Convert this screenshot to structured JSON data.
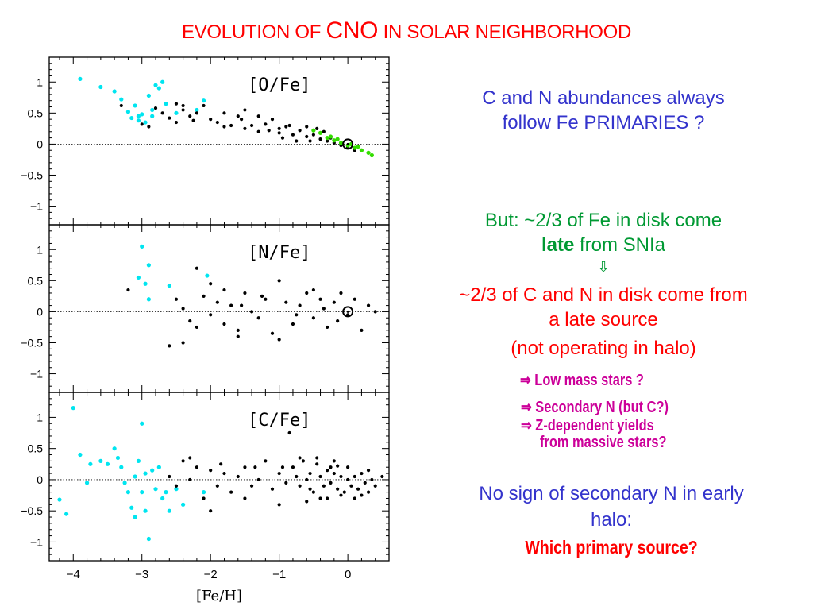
{
  "slide": {
    "title_prefix": "EVOLUTION OF ",
    "title_big": "CNO",
    "title_suffix": " IN SOLAR NEIGHBORHOOD"
  },
  "notes": {
    "primaries": "C and N abundances always follow Fe PRIMARIES ?",
    "late_prefix": "But: ~2/3 of Fe in disk come ",
    "late_word": "late",
    "late_suffix": " from SNIa",
    "arrow": "⇩",
    "late_source": "~2/3 of C and N in disk come from a late source",
    "halo": "(not operating in halo)",
    "hyp_lowmass": "⇒ Low mass stars ?",
    "hyp_secondary": "⇒ Secondary N (but C?)",
    "hyp_zdep": "⇒ Z-dependent yields",
    "hyp_massive": "from massive stars?",
    "no_sign": "No sign of secondary N in early halo:",
    "which": "Which primary source?"
  },
  "colors": {
    "title": "#ff0000",
    "blue_text": "#3333cc",
    "green_text": "#009933",
    "magenta_text": "#cc0099",
    "halo_points": "#00e5f0",
    "disk_points": "#000000",
    "green_points": "#33dd00"
  },
  "chart_data": [
    {
      "type": "scatter",
      "title": "[O/Fe]",
      "xlabel": "[Fe/H]",
      "ylabel": "",
      "xlim": [
        -4.35,
        0.6
      ],
      "ylim": [
        -1.3,
        1.4
      ],
      "xticks": [
        "-4",
        "-3",
        "-2",
        "-1",
        "0"
      ],
      "yticks": [
        "1",
        "0.5",
        "0",
        "-0.5",
        "-1"
      ],
      "reference_line": 0,
      "sun_marker": [
        0,
        0
      ],
      "series": [
        {
          "color": "cyan",
          "points": [
            [
              -3.9,
              1.05
            ],
            [
              -3.6,
              0.92
            ],
            [
              -3.4,
              0.85
            ],
            [
              -3.3,
              0.72
            ],
            [
              -3.2,
              0.52
            ],
            [
              -3.1,
              0.62
            ],
            [
              -3.05,
              0.45
            ],
            [
              -3.0,
              0.48
            ],
            [
              -2.95,
              0.35
            ],
            [
              -2.9,
              0.78
            ],
            [
              -2.85,
              0.55
            ],
            [
              -2.8,
              0.95
            ],
            [
              -2.75,
              0.9
            ],
            [
              -2.7,
              1.0
            ],
            [
              -2.65,
              0.65
            ],
            [
              -3.15,
              0.42
            ],
            [
              -3.05,
              0.38
            ],
            [
              -2.5,
              0.5
            ],
            [
              -2.1,
              0.7
            ],
            [
              -2.2,
              0.55
            ],
            [
              -2.85,
              0.45
            ]
          ]
        },
        {
          "color": "black",
          "points": [
            [
              -3.3,
              0.62
            ],
            [
              -3.0,
              0.32
            ],
            [
              -2.8,
              0.58
            ],
            [
              -2.7,
              0.5
            ],
            [
              -2.6,
              0.42
            ],
            [
              -2.5,
              0.65
            ],
            [
              -2.4,
              0.55
            ],
            [
              -2.3,
              0.45
            ],
            [
              -2.2,
              0.5
            ],
            [
              -2.1,
              0.62
            ],
            [
              -2.0,
              0.4
            ],
            [
              -1.9,
              0.35
            ],
            [
              -1.8,
              0.5
            ],
            [
              -1.7,
              0.3
            ],
            [
              -1.6,
              0.45
            ],
            [
              -1.5,
              0.55
            ],
            [
              -1.4,
              0.3
            ],
            [
              -1.3,
              0.45
            ],
            [
              -1.2,
              0.32
            ],
            [
              -1.1,
              0.4
            ],
            [
              -1.0,
              0.25
            ],
            [
              -0.9,
              0.28
            ],
            [
              -0.8,
              0.15
            ],
            [
              -0.7,
              0.22
            ],
            [
              -0.6,
              0.12
            ],
            [
              -0.5,
              0.15
            ],
            [
              -0.4,
              0.08
            ],
            [
              -0.3,
              0.05
            ],
            [
              -0.2,
              0.02
            ],
            [
              -0.1,
              -0.02
            ],
            [
              0.0,
              -0.05
            ],
            [
              0.1,
              -0.1
            ],
            [
              -1.5,
              0.25
            ],
            [
              -2.5,
              0.35
            ],
            [
              -1.8,
              0.28
            ],
            [
              -1.0,
              0.18
            ],
            [
              -0.6,
              0.28
            ],
            [
              -2.4,
              0.62
            ],
            [
              -2.9,
              0.28
            ],
            [
              -1.3,
              0.2
            ],
            [
              -0.95,
              0.1
            ],
            [
              -0.35,
              0.2
            ],
            [
              -0.75,
              0.05
            ],
            [
              -2.25,
              0.38
            ],
            [
              -1.55,
              0.4
            ],
            [
              -1.15,
              0.22
            ],
            [
              -0.55,
              0.05
            ],
            [
              -0.85,
              0.3
            ],
            [
              -0.45,
              0.25
            ],
            [
              -0.25,
              0.1
            ]
          ]
        },
        {
          "color": "green",
          "points": [
            [
              -0.5,
              0.22
            ],
            [
              -0.4,
              0.18
            ],
            [
              -0.3,
              0.1
            ],
            [
              -0.2,
              0.06
            ],
            [
              -0.1,
              0.02
            ],
            [
              0.0,
              -0.02
            ],
            [
              0.1,
              -0.06
            ],
            [
              0.2,
              -0.1
            ],
            [
              0.3,
              -0.14
            ],
            [
              0.35,
              -0.18
            ],
            [
              -0.15,
              0.08
            ],
            [
              0.05,
              0.0
            ],
            [
              0.15,
              -0.04
            ],
            [
              -0.25,
              0.12
            ]
          ]
        }
      ]
    },
    {
      "type": "scatter",
      "title": "[N/Fe]",
      "xlabel": "[Fe/H]",
      "ylabel": "",
      "xlim": [
        -4.35,
        0.6
      ],
      "ylim": [
        -1.3,
        1.4
      ],
      "xticks": [
        "-4",
        "-3",
        "-2",
        "-1",
        "0"
      ],
      "yticks": [
        "1",
        "0.5",
        "0",
        "-0.5",
        "-1"
      ],
      "reference_line": 0,
      "sun_marker": [
        0,
        0
      ],
      "series": [
        {
          "color": "cyan",
          "points": [
            [
              -3.0,
              1.05
            ],
            [
              -2.9,
              0.75
            ],
            [
              -3.05,
              0.55
            ],
            [
              -2.95,
              0.45
            ],
            [
              -2.9,
              0.2
            ],
            [
              -2.6,
              0.42
            ],
            [
              -2.05,
              0.58
            ]
          ]
        },
        {
          "color": "black",
          "points": [
            [
              -3.2,
              0.35
            ],
            [
              -2.5,
              0.2
            ],
            [
              -2.4,
              0.05
            ],
            [
              -2.3,
              -0.15
            ],
            [
              -2.2,
              0.7
            ],
            [
              -2.1,
              0.25
            ],
            [
              -2.0,
              -0.05
            ],
            [
              -1.9,
              0.15
            ],
            [
              -1.8,
              -0.2
            ],
            [
              -1.7,
              0.1
            ],
            [
              -1.6,
              -0.3
            ],
            [
              -1.5,
              0.3
            ],
            [
              -1.4,
              0.0
            ],
            [
              -1.3,
              -0.1
            ],
            [
              -1.2,
              0.2
            ],
            [
              -1.1,
              -0.35
            ],
            [
              -1.0,
              0.5
            ],
            [
              -0.9,
              0.15
            ],
            [
              -0.8,
              -0.2
            ],
            [
              -0.7,
              0.1
            ],
            [
              -0.6,
              0.3
            ],
            [
              -0.5,
              -0.1
            ],
            [
              -0.4,
              0.2
            ],
            [
              -0.3,
              -0.25
            ],
            [
              -0.2,
              0.15
            ],
            [
              -0.1,
              0.3
            ],
            [
              0.0,
              -0.05
            ],
            [
              0.1,
              0.2
            ],
            [
              0.2,
              -0.3
            ],
            [
              0.3,
              0.1
            ],
            [
              -2.6,
              -0.55
            ],
            [
              -2.4,
              -0.5
            ],
            [
              -1.6,
              -0.4
            ],
            [
              -1.0,
              -0.45
            ],
            [
              -0.5,
              0.35
            ],
            [
              0.4,
              0.0
            ],
            [
              -1.8,
              0.35
            ],
            [
              -2.0,
              0.45
            ],
            [
              -0.15,
              -0.15
            ],
            [
              -0.35,
              0.05
            ],
            [
              -0.75,
              -0.05
            ],
            [
              -1.25,
              0.25
            ],
            [
              -1.55,
              0.1
            ],
            [
              -2.2,
              -0.25
            ]
          ]
        }
      ]
    },
    {
      "type": "scatter",
      "title": "[C/Fe]",
      "xlabel": "[Fe/H]",
      "ylabel": "",
      "xlim": [
        -4.35,
        0.6
      ],
      "ylim": [
        -1.3,
        1.4
      ],
      "xticks": [
        "-4",
        "-3",
        "-2",
        "-1",
        "0"
      ],
      "yticks": [
        "1",
        "0.5",
        "0",
        "-0.5",
        "-1"
      ],
      "reference_line": 0,
      "sun_marker": null,
      "series": [
        {
          "color": "cyan",
          "points": [
            [
              -4.2,
              -0.32
            ],
            [
              -4.1,
              -0.55
            ],
            [
              -4.0,
              1.15
            ],
            [
              -3.9,
              0.4
            ],
            [
              -3.8,
              -0.05
            ],
            [
              -3.75,
              0.25
            ],
            [
              -3.6,
              0.3
            ],
            [
              -3.5,
              0.25
            ],
            [
              -3.4,
              0.5
            ],
            [
              -3.35,
              0.35
            ],
            [
              -3.3,
              0.2
            ],
            [
              -3.25,
              -0.05
            ],
            [
              -3.2,
              -0.2
            ],
            [
              -3.15,
              -0.45
            ],
            [
              -3.1,
              -0.6
            ],
            [
              -3.05,
              0.3
            ],
            [
              -3.0,
              0.9
            ],
            [
              -3.0,
              -0.2
            ],
            [
              -2.95,
              -0.5
            ],
            [
              -2.9,
              -0.95
            ],
            [
              -2.85,
              0.15
            ],
            [
              -2.8,
              -0.15
            ],
            [
              -2.75,
              0.2
            ],
            [
              -2.7,
              -0.3
            ],
            [
              -2.65,
              -0.2
            ],
            [
              -2.6,
              -0.5
            ],
            [
              -2.5,
              -0.15
            ],
            [
              -2.4,
              -0.4
            ],
            [
              -2.1,
              -0.2
            ],
            [
              -3.1,
              0.05
            ],
            [
              -2.95,
              0.1
            ]
          ]
        },
        {
          "color": "black",
          "points": [
            [
              -2.6,
              0.05
            ],
            [
              -2.5,
              -0.1
            ],
            [
              -2.4,
              0.3
            ],
            [
              -2.3,
              0.0
            ],
            [
              -2.2,
              0.2
            ],
            [
              -2.1,
              -0.3
            ],
            [
              -2.0,
              0.15
            ],
            [
              -1.9,
              -0.1
            ],
            [
              -1.8,
              0.1
            ],
            [
              -1.7,
              -0.2
            ],
            [
              -1.6,
              0.05
            ],
            [
              -1.5,
              0.2
            ],
            [
              -1.4,
              -0.1
            ],
            [
              -1.3,
              0.0
            ],
            [
              -1.2,
              0.3
            ],
            [
              -1.1,
              -0.15
            ],
            [
              -1.0,
              0.1
            ],
            [
              -0.9,
              -0.05
            ],
            [
              -0.85,
              0.75
            ],
            [
              -0.8,
              0.2
            ],
            [
              -0.75,
              0.05
            ],
            [
              -0.7,
              -0.1
            ],
            [
              -0.65,
              0.3
            ],
            [
              -0.6,
              0.0
            ],
            [
              -0.55,
              0.1
            ],
            [
              -0.5,
              -0.2
            ],
            [
              -0.45,
              0.25
            ],
            [
              -0.4,
              0.05
            ],
            [
              -0.35,
              -0.1
            ],
            [
              -0.3,
              0.15
            ],
            [
              -0.25,
              -0.05
            ],
            [
              -0.2,
              0.1
            ],
            [
              -0.15,
              -0.15
            ],
            [
              -0.1,
              0.05
            ],
            [
              -0.05,
              -0.2
            ],
            [
              0.0,
              0.0
            ],
            [
              0.05,
              -0.1
            ],
            [
              0.1,
              0.05
            ],
            [
              0.15,
              -0.15
            ],
            [
              0.2,
              0.1
            ],
            [
              0.25,
              -0.05
            ],
            [
              0.3,
              -0.2
            ],
            [
              0.35,
              0.0
            ],
            [
              0.4,
              -0.1
            ],
            [
              0.5,
              0.05
            ],
            [
              -1.0,
              -0.4
            ],
            [
              -0.6,
              -0.35
            ],
            [
              -0.3,
              -0.3
            ],
            [
              0.1,
              -0.3
            ],
            [
              -0.2,
              0.3
            ],
            [
              -0.45,
              0.35
            ],
            [
              -2.0,
              -0.5
            ],
            [
              -1.5,
              -0.3
            ],
            [
              -2.3,
              0.35
            ],
            [
              -1.85,
              0.25
            ],
            [
              -1.35,
              0.2
            ],
            [
              -0.95,
              0.2
            ],
            [
              -0.7,
              0.35
            ],
            [
              -0.4,
              -0.3
            ],
            [
              0.2,
              -0.25
            ],
            [
              0.0,
              0.2
            ],
            [
              -0.15,
              0.22
            ],
            [
              0.3,
              0.15
            ],
            [
              -0.55,
              -0.15
            ],
            [
              -0.25,
              0.2
            ],
            [
              -0.1,
              -0.25
            ]
          ]
        }
      ]
    }
  ]
}
